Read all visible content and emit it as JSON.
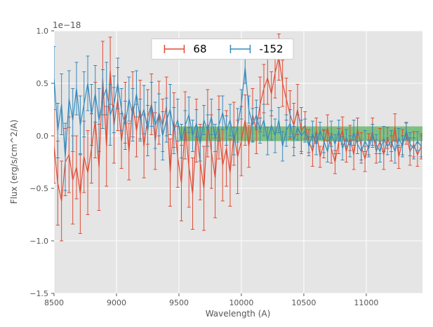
{
  "style": {
    "figure_background": "#ffffff",
    "axes_background": "#e5e5e5",
    "grid_color": "#ffffff",
    "tick_color": "#555555",
    "label_color": "#555555"
  },
  "chart_data": {
    "type": "line",
    "title": "",
    "xlabel": "Wavelength (A)",
    "ylabel": "Flux (erg/s/cm^2/A)",
    "y_offset_text": "1e−18",
    "xlim": [
      8500,
      11450
    ],
    "ylim": [
      -1.5,
      1.0
    ],
    "xticks": [
      8500,
      9000,
      9500,
      10000,
      10500,
      11000
    ],
    "yticks": [
      -1.5,
      -1.0,
      -0.5,
      0.0,
      0.5,
      1.0
    ],
    "grid": true,
    "legend": {
      "position": "upper center",
      "entries": [
        {
          "label": "68",
          "color": "#e24a33"
        },
        {
          "label": "-152",
          "color": "#348abd"
        }
      ]
    },
    "band": {
      "x_start": 9500,
      "x_end": 11450,
      "y_low": -0.05,
      "y_high": 0.09,
      "color": "#2ca02c",
      "opacity": 0.55
    },
    "x": [
      8500,
      8530,
      8560,
      8590,
      8620,
      8650,
      8680,
      8710,
      8740,
      8770,
      8800,
      8830,
      8860,
      8890,
      8920,
      8950,
      8980,
      9010,
      9040,
      9070,
      9100,
      9130,
      9160,
      9190,
      9220,
      9250,
      9280,
      9310,
      9340,
      9370,
      9400,
      9430,
      9460,
      9490,
      9520,
      9550,
      9580,
      9610,
      9640,
      9670,
      9700,
      9730,
      9760,
      9790,
      9820,
      9850,
      9880,
      9910,
      9940,
      9970,
      10000,
      10030,
      10060,
      10090,
      10120,
      10150,
      10180,
      10210,
      10240,
      10270,
      10300,
      10330,
      10360,
      10390,
      10420,
      10450,
      10480,
      10510,
      10540,
      10570,
      10600,
      10630,
      10660,
      10690,
      10720,
      10750,
      10780,
      10810,
      10840,
      10870,
      10900,
      10930,
      10960,
      10990,
      11020,
      11050,
      11080,
      11110,
      11140,
      11170,
      11200,
      11230,
      11260,
      11290,
      11320,
      11350,
      11380,
      11410,
      11440
    ],
    "series": [
      {
        "name": "68",
        "color": "#e24a33",
        "values": [
          -0.1,
          -0.45,
          -0.62,
          -0.25,
          -0.18,
          -0.42,
          -0.3,
          -0.55,
          -0.2,
          -0.35,
          -0.12,
          0.15,
          -0.3,
          0.55,
          -0.1,
          0.62,
          0.1,
          0.35,
          -0.05,
          0.22,
          -0.15,
          0.3,
          0.05,
          0.25,
          -0.1,
          0.18,
          0.3,
          -0.05,
          0.22,
          0.1,
          0.28,
          -0.35,
          0.15,
          -0.2,
          -0.45,
          0.1,
          -0.3,
          -0.55,
          0.05,
          -0.25,
          -0.5,
          0.12,
          -0.15,
          -0.4,
          0.08,
          -0.28,
          -0.12,
          -0.35,
          0.02,
          -0.2,
          -0.05,
          0.15,
          -0.1,
          0.2,
          0.05,
          0.3,
          0.45,
          0.55,
          0.4,
          0.6,
          0.75,
          0.5,
          0.35,
          0.2,
          0.1,
          0.25,
          0.05,
          0.1,
          -0.05,
          -0.15,
          0.05,
          -0.2,
          -0.08,
          0.08,
          -0.12,
          -0.25,
          -0.05,
          0.05,
          -0.15,
          -0.02,
          -0.18,
          0.06,
          -0.1,
          -0.22,
          -0.08,
          0.04,
          -0.15,
          -0.05,
          -0.18,
          -0.02,
          -0.12,
          0.08,
          -0.2,
          -0.06,
          0.02,
          -0.15,
          -0.08,
          -0.18,
          -0.1
        ],
        "yerr": [
          0.35,
          0.4,
          0.38,
          0.32,
          0.36,
          0.42,
          0.3,
          0.38,
          0.34,
          0.4,
          0.33,
          0.36,
          0.41,
          0.35,
          0.38,
          0.32,
          0.36,
          0.3,
          0.26,
          0.29,
          0.27,
          0.31,
          0.25,
          0.28,
          0.3,
          0.26,
          0.29,
          0.27,
          0.3,
          0.25,
          0.28,
          0.32,
          0.26,
          0.29,
          0.36,
          0.32,
          0.38,
          0.34,
          0.3,
          0.36,
          0.4,
          0.32,
          0.35,
          0.38,
          0.3,
          0.34,
          0.36,
          0.32,
          0.3,
          0.35,
          0.33,
          0.24,
          0.2,
          0.25,
          0.22,
          0.26,
          0.23,
          0.25,
          0.21,
          0.24,
          0.22,
          0.22,
          0.2,
          0.23,
          0.21,
          0.24,
          0.22,
          0.13,
          0.11,
          0.14,
          0.12,
          0.1,
          0.13,
          0.12,
          0.14,
          0.11,
          0.12,
          0.13,
          0.1,
          0.12,
          0.14,
          0.11,
          0.13,
          0.12,
          0.1,
          0.13,
          0.11,
          0.12,
          0.14,
          0.1,
          0.12,
          0.13,
          0.11,
          0.12,
          0.1,
          0.13,
          0.12,
          0.11,
          0.12
        ]
      },
      {
        "name": "-152",
        "color": "#348abd",
        "values": [
          0.55,
          0.05,
          0.3,
          -0.2,
          0.35,
          0.15,
          0.45,
          0.1,
          0.3,
          0.5,
          0.2,
          0.4,
          0.15,
          0.35,
          0.45,
          0.2,
          0.3,
          0.5,
          0.25,
          0.1,
          0.35,
          0.2,
          0.4,
          0.15,
          0.25,
          0.05,
          0.3,
          0.1,
          0.2,
          0.0,
          0.15,
          0.25,
          0.05,
          0.15,
          -0.05,
          0.1,
          0.2,
          0.0,
          0.12,
          -0.08,
          0.15,
          0.05,
          0.18,
          -0.02,
          0.1,
          0.22,
          0.05,
          0.15,
          -0.05,
          0.1,
          0.3,
          0.65,
          0.25,
          0.1,
          0.2,
          0.05,
          0.15,
          -0.05,
          0.1,
          0.0,
          0.15,
          -0.1,
          0.05,
          0.12,
          -0.05,
          0.08,
          0.0,
          0.05,
          -0.1,
          0.02,
          -0.08,
          0.05,
          -0.05,
          -0.15,
          0.02,
          -0.08,
          0.05,
          -0.12,
          -0.02,
          -0.1,
          0.03,
          -0.08,
          -0.15,
          -0.05,
          -0.12,
          0.0,
          -0.08,
          -0.15,
          -0.03,
          -0.1,
          -0.05,
          -0.15,
          -0.02,
          -0.1,
          0.05,
          -0.08,
          -0.12,
          -0.05,
          -0.1
        ],
        "yerr": [
          0.3,
          0.26,
          0.29,
          0.32,
          0.27,
          0.3,
          0.25,
          0.28,
          0.31,
          0.26,
          0.29,
          0.27,
          0.3,
          0.28,
          0.25,
          0.29,
          0.27,
          0.24,
          0.2,
          0.23,
          0.21,
          0.25,
          0.22,
          0.2,
          0.23,
          0.24,
          0.21,
          0.22,
          0.2,
          0.23,
          0.21,
          0.24,
          0.22,
          0.2,
          0.16,
          0.14,
          0.17,
          0.15,
          0.13,
          0.16,
          0.14,
          0.15,
          0.17,
          0.13,
          0.15,
          0.16,
          0.14,
          0.15,
          0.13,
          0.16,
          0.14,
          0.15,
          0.13,
          0.16,
          0.14,
          0.12,
          0.15,
          0.13,
          0.14,
          0.16,
          0.12,
          0.14,
          0.15,
          0.13,
          0.14,
          0.12,
          0.15,
          0.11,
          0.09,
          0.12,
          0.1,
          0.08,
          0.11,
          0.1,
          0.12,
          0.09,
          0.1,
          0.11,
          0.08,
          0.1,
          0.12,
          0.09,
          0.11,
          0.1,
          0.08,
          0.11,
          0.09,
          0.1,
          0.12,
          0.08,
          0.1,
          0.11,
          0.09,
          0.1,
          0.08,
          0.11,
          0.1,
          0.09,
          0.1
        ]
      }
    ]
  }
}
